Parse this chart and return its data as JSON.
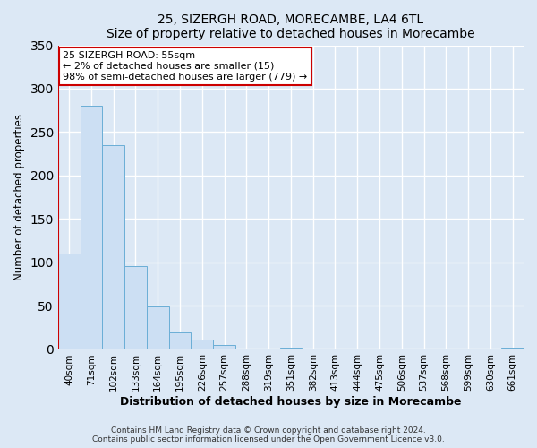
{
  "title": "25, SIZERGH ROAD, MORECAMBE, LA4 6TL",
  "subtitle": "Size of property relative to detached houses in Morecambe",
  "xlabel": "Distribution of detached houses by size in Morecambe",
  "ylabel": "Number of detached properties",
  "bar_labels": [
    "40sqm",
    "71sqm",
    "102sqm",
    "133sqm",
    "164sqm",
    "195sqm",
    "226sqm",
    "257sqm",
    "288sqm",
    "319sqm",
    "351sqm",
    "382sqm",
    "413sqm",
    "444sqm",
    "475sqm",
    "506sqm",
    "537sqm",
    "568sqm",
    "599sqm",
    "630sqm",
    "661sqm"
  ],
  "bar_heights": [
    110,
    280,
    235,
    95,
    49,
    19,
    11,
    5,
    0,
    0,
    2,
    0,
    0,
    0,
    0,
    0,
    0,
    0,
    0,
    0,
    2
  ],
  "bar_color": "#ccdff3",
  "bar_edge_color": "#6aaed6",
  "ylim": [
    0,
    350
  ],
  "yticks": [
    0,
    50,
    100,
    150,
    200,
    250,
    300,
    350
  ],
  "marker_color": "#cc0000",
  "annotation_title": "25 SIZERGH ROAD: 55sqm",
  "annotation_line1": "← 2% of detached houses are smaller (15)",
  "annotation_line2": "98% of semi-detached houses are larger (779) →",
  "annotation_box_color": "#ffffff",
  "annotation_box_edge": "#cc0000",
  "footer_line1": "Contains HM Land Registry data © Crown copyright and database right 2024.",
  "footer_line2": "Contains public sector information licensed under the Open Government Licence v3.0.",
  "background_color": "#dce8f5",
  "plot_bg_color": "#dce8f5",
  "grid_color": "#ffffff"
}
